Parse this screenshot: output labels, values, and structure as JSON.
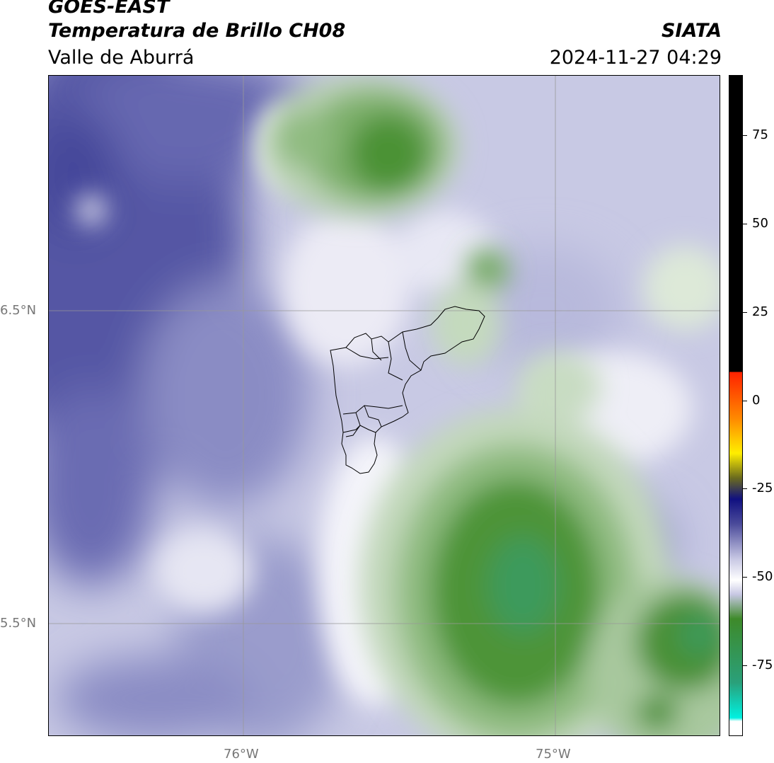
{
  "header": {
    "satellite": "GOES-EAST",
    "product": "Temperatura de Brillo CH08",
    "region": "Valle de Aburrá",
    "agency": "SIATA",
    "timestamp": "2024-11-27 04:29"
  },
  "map": {
    "lat_labels": [
      "6.5°N",
      "5.5°N"
    ],
    "lon_labels": [
      "76°W",
      "75°W"
    ],
    "gridlines": true
  },
  "colorbar": {
    "ticks": [
      "75",
      "50",
      "25",
      "0",
      "-25",
      "-50",
      "-75"
    ],
    "tick_values": [
      75,
      50,
      25,
      0,
      -25,
      -50,
      -75
    ],
    "range": [
      -95,
      92
    ],
    "colors": {
      "warm_black": "#000000",
      "red": "#ff2200",
      "orange": "#ff8800",
      "yellow": "#ffee00",
      "olive": "#6b6b1e",
      "navy": "#101080",
      "purple": "#4a4a9a",
      "lavender": "#c8c8e4",
      "white": "#ffffff",
      "green": "#3e8a2a",
      "teal": "#2aa07a",
      "cyan": "#00f0e0"
    }
  },
  "colors": {
    "dark_purple": "#4a4c9c",
    "mid_purple": "#8486c0",
    "light_purple": "#c4c6e2",
    "pale": "#e8e8f4",
    "light_green": "#b8d0b0",
    "mid_green": "#6fa85e",
    "dark_green": "#3d8a2c",
    "teal_green": "#3a9a5a"
  }
}
